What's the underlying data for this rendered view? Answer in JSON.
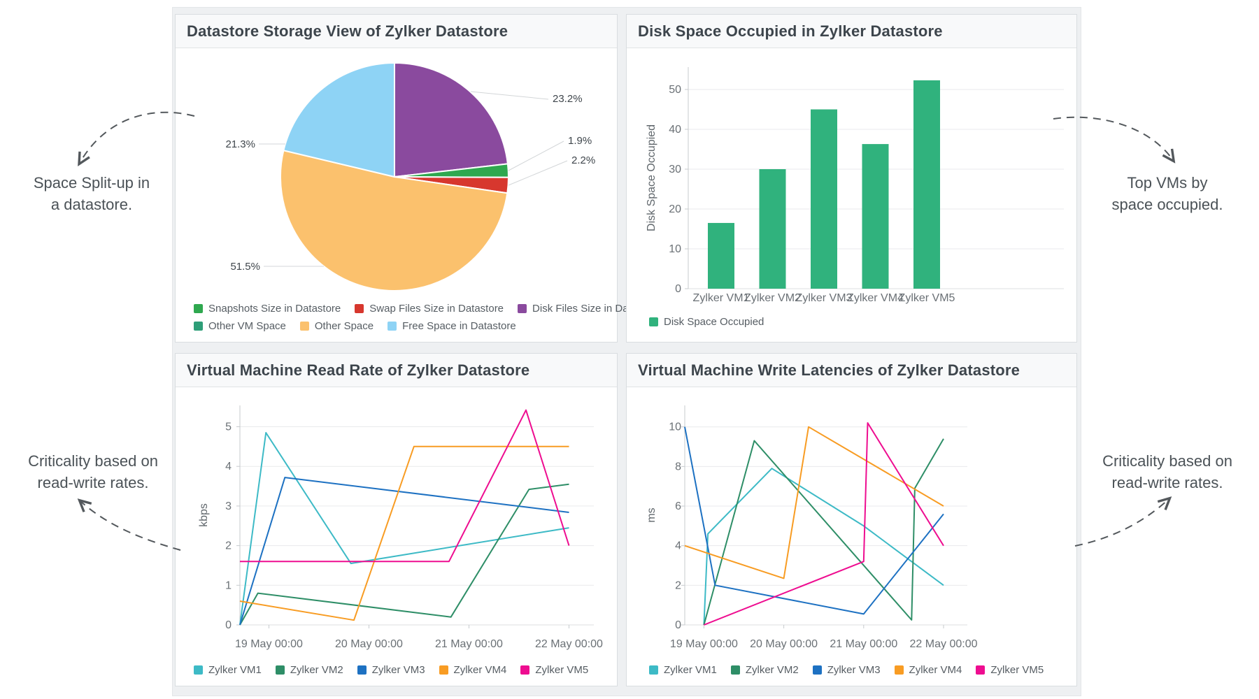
{
  "annotations": {
    "pie": {
      "line1": "Space Split-up in",
      "line2": "a datastore."
    },
    "bar": {
      "line1": "Top VMs by",
      "line2": "space occupied."
    },
    "read": {
      "line1": "Criticality based on",
      "line2": "read-write rates."
    },
    "write": {
      "line1": "Criticality based on",
      "line2": "read-write rates."
    }
  },
  "colors": {
    "vm1": "#3dbac6",
    "vm2": "#2e8e67",
    "vm3": "#1d71c2",
    "vm4": "#f89c23",
    "vm5": "#ee0d90",
    "bar_green": "#30b27d",
    "pie_disk_files": "#8a4a9e",
    "pie_snapshots": "#2fa84f",
    "pie_swap_files": "#d7372e",
    "pie_other_space": "#fbc16d",
    "pie_free_space": "#8ed3f5",
    "pie_other_vm": "#2e9e78"
  },
  "chart_data": [
    {
      "type": "pie",
      "title": "Datastore Storage View of Zylker Datastore",
      "slices": [
        {
          "label": "Disk Files Size in Datastore",
          "value": 23.2,
          "pct_label": "23.2%",
          "color": "#8a4a9e"
        },
        {
          "label": "Snapshots Size in Datastore",
          "value": 1.9,
          "pct_label": "1.9%",
          "color": "#2fa84f"
        },
        {
          "label": "Swap Files Size in Datastore",
          "value": 2.2,
          "pct_label": "2.2%",
          "color": "#d7372e"
        },
        {
          "label": "Other Space",
          "value": 51.5,
          "pct_label": "51.5%",
          "color": "#fbc16d"
        },
        {
          "label": "Free Space in Datastore",
          "value": 21.3,
          "pct_label": "21.3%",
          "color": "#8ed3f5"
        }
      ],
      "legend_rows": [
        [
          {
            "label": "Snapshots Size in Datastore",
            "color": "#2fa84f"
          },
          {
            "label": "Swap Files Size in Datastore",
            "color": "#d7372e"
          },
          {
            "label": "Disk Files Size in Datastore",
            "color": "#8a4a9e"
          }
        ],
        [
          {
            "label": "Other VM Space",
            "color": "#2e9e78"
          },
          {
            "label": "Other Space",
            "color": "#fbc16d"
          },
          {
            "label": "Free Space in Datastore",
            "color": "#8ed3f5"
          }
        ]
      ],
      "legend_position": "bottom"
    },
    {
      "type": "bar",
      "title": "Disk Space Occupied in Zylker Datastore",
      "categories": [
        "Zylker VM1",
        "Zylker VM2",
        "Zylker VM3",
        "Zylker VM4",
        "Zylker VM5"
      ],
      "values": [
        16.5,
        30,
        45,
        36.3,
        52.3
      ],
      "ylabel": "Disk Space Occupied",
      "ylim": [
        0,
        55
      ],
      "yticks": [
        0,
        10,
        20,
        30,
        40,
        50
      ],
      "bar_color": "#30b27d",
      "legend_rows": [
        [
          {
            "label": "Disk Space Occupied",
            "color": "#30b27d"
          }
        ]
      ],
      "legend_position": "bottom",
      "grid": "horizontal"
    },
    {
      "type": "line",
      "title": "Virtual Machine Read Rate of Zylker Datastore",
      "ylabel": "kbps",
      "yticks": [
        0,
        1,
        2,
        3,
        4,
        5
      ],
      "ylim": [
        0,
        5.55
      ],
      "xlim": [
        -0.29,
        3.12
      ],
      "x_ticks": [
        {
          "pos": 0,
          "label": "19 May 00:00"
        },
        {
          "pos": 1,
          "label": "20 May 00:00"
        },
        {
          "pos": 2,
          "label": "21 May 00:00"
        },
        {
          "pos": 3,
          "label": "22 May 00:00"
        }
      ],
      "series": [
        {
          "name": "Zylker VM1",
          "color": "#3dbac6",
          "points": [
            [
              -0.29,
              0
            ],
            [
              -0.03,
              4.85
            ],
            [
              0.82,
              1.55
            ],
            [
              3,
              2.45
            ]
          ]
        },
        {
          "name": "Zylker VM2",
          "color": "#2e8e67",
          "points": [
            [
              -0.29,
              0
            ],
            [
              -0.11,
              0.8
            ],
            [
              1.82,
              0.2
            ],
            [
              2.6,
              3.42
            ],
            [
              3,
              3.55
            ]
          ]
        },
        {
          "name": "Zylker VM3",
          "color": "#1d71c2",
          "points": [
            [
              -0.29,
              0
            ],
            [
              0.16,
              3.72
            ],
            [
              3,
              2.84
            ]
          ]
        },
        {
          "name": "Zylker VM4",
          "color": "#f89c23",
          "points": [
            [
              -0.29,
              0.6
            ],
            [
              0.85,
              0.12
            ],
            [
              1.45,
              4.5
            ],
            [
              3,
              4.5
            ]
          ]
        },
        {
          "name": "Zylker VM5",
          "color": "#ee0d90",
          "points": [
            [
              -0.29,
              1.6
            ],
            [
              1.8,
              1.6
            ],
            [
              2.57,
              5.42
            ],
            [
              3,
              2.0
            ]
          ]
        }
      ],
      "legend_position": "bottom",
      "grid": "horizontal"
    },
    {
      "type": "line",
      "title": "Virtual Machine Write Latencies of Zylker Datastore",
      "ylabel": "ms",
      "yticks": [
        0,
        2,
        4,
        6,
        8,
        10
      ],
      "ylim": [
        0,
        11.1
      ],
      "xlim": [
        -0.24,
        3.2
      ],
      "x_ticks": [
        {
          "pos": 0,
          "label": "19 May 00:00"
        },
        {
          "pos": 1,
          "label": "20 May 00:00"
        },
        {
          "pos": 2,
          "label": "21 May 00:00"
        },
        {
          "pos": 3,
          "label": "22 May 00:00"
        }
      ],
      "series": [
        {
          "name": "Zylker VM1",
          "color": "#3dbac6",
          "points": [
            [
              0,
              0
            ],
            [
              0.05,
              4.6
            ],
            [
              0.85,
              7.9
            ],
            [
              2.0,
              5.0
            ],
            [
              3,
              2.0
            ]
          ]
        },
        {
          "name": "Zylker VM2",
          "color": "#2e8e67",
          "points": [
            [
              0,
              0
            ],
            [
              0.63,
              9.3
            ],
            [
              2.6,
              0.25
            ],
            [
              2.64,
              6.9
            ],
            [
              3,
              9.4
            ]
          ]
        },
        {
          "name": "Zylker VM3",
          "color": "#1d71c2",
          "points": [
            [
              -0.24,
              10
            ],
            [
              0.14,
              2.0
            ],
            [
              2.0,
              0.55
            ],
            [
              3,
              5.6
            ]
          ]
        },
        {
          "name": "Zylker VM4",
          "color": "#f89c23",
          "points": [
            [
              -0.24,
              4.0
            ],
            [
              1.0,
              2.35
            ],
            [
              1.31,
              10.0
            ],
            [
              3,
              6.0
            ]
          ]
        },
        {
          "name": "Zylker VM5",
          "color": "#ee0d90",
          "points": [
            [
              0,
              0
            ],
            [
              2.0,
              3.2
            ],
            [
              2.05,
              10.2
            ],
            [
              3,
              4.0
            ]
          ]
        }
      ],
      "legend_position": "bottom",
      "grid": "horizontal"
    }
  ]
}
